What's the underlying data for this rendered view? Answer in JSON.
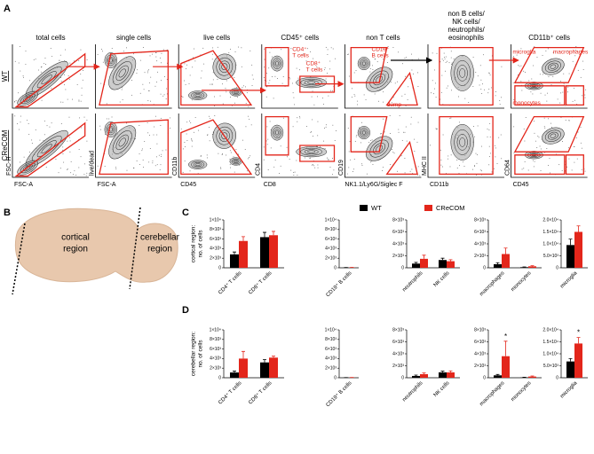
{
  "panel_labels": [
    "A",
    "B",
    "C",
    "D"
  ],
  "flow": {
    "rows": [
      "WT",
      "CReCOM"
    ],
    "columns": [
      {
        "title": [
          "total cells"
        ],
        "x": "FSC-A",
        "y": "FSC-H"
      },
      {
        "title": [
          "single cells"
        ],
        "x": "FSC-A",
        "y": "live/dead"
      },
      {
        "title": [
          "live cells"
        ],
        "x": "CD45",
        "y": "CD11b"
      },
      {
        "title": [
          "CD45⁺ cells"
        ],
        "x": "CD8",
        "y": "CD4"
      },
      {
        "title": [
          "non T cells"
        ],
        "x": "NK1.1/Ly6G/Siglec F",
        "y": "CD19"
      },
      {
        "title": [
          "non B cells/",
          "NK cells/",
          "neutrophils/",
          "eosinophils"
        ],
        "x": "CD11b",
        "y": "MHC II"
      },
      {
        "title": [
          "CD11b⁺ cells"
        ],
        "x": "CD45",
        "y": "CD64"
      }
    ],
    "gates": [
      [
        "CD4⁺",
        "T cells"
      ],
      [
        "CD8⁺",
        "T cells"
      ],
      [
        "CD19⁺",
        "B cells"
      ],
      [
        "dump"
      ],
      [
        "microglia"
      ],
      [
        "macrophages"
      ],
      [
        "monocytes"
      ]
    ]
  },
  "diagram": {
    "regions": [
      [
        "cortical",
        "region"
      ],
      [
        "cerebellar",
        "region"
      ]
    ]
  },
  "chart_data": [
    {
      "type": "bar",
      "ylabel": [
        "cortical region:",
        "no. of cells"
      ],
      "categories": [
        "CD4⁺ T cells",
        "CD8⁺ T cells"
      ],
      "ylim": [
        0,
        10000
      ],
      "yticks": [
        0,
        {
          "value": 2000,
          "label": "2×10³"
        },
        {
          "value": 4000,
          "label": "4×10³"
        },
        {
          "value": 6000,
          "label": "6×10³"
        },
        {
          "value": 8000,
          "label": "8×10³"
        },
        {
          "value": 10000,
          "label": "1×10⁴"
        }
      ],
      "series": [
        {
          "name": "WT",
          "color": "#000000",
          "values": [
            2800,
            6400
          ],
          "errors": [
            500,
            1000
          ]
        },
        {
          "name": "CReCOM",
          "color": "#e3261b",
          "values": [
            5600,
            6800
          ],
          "errors": [
            900,
            800
          ]
        }
      ]
    },
    {
      "type": "bar",
      "categories": [
        "CD19⁺ B cells"
      ],
      "ylim": [
        0,
        10000
      ],
      "yticks": [
        0,
        {
          "value": 2000,
          "label": "2×10³"
        },
        {
          "value": 4000,
          "label": "4×10³"
        },
        {
          "value": 6000,
          "label": "6×10³"
        },
        {
          "value": 8000,
          "label": "8×10³"
        },
        {
          "value": 10000,
          "label": "1×10⁴"
        }
      ],
      "series": [
        {
          "name": "WT",
          "color": "#000000",
          "values": [
            40
          ],
          "errors": [
            20
          ]
        },
        {
          "name": "CReCOM",
          "color": "#e3261b",
          "values": [
            60
          ],
          "errors": [
            30
          ]
        }
      ]
    },
    {
      "type": "bar",
      "categories": [
        "neutrophils",
        "NK cells"
      ],
      "ylim": [
        0,
        8000
      ],
      "yticks": [
        0,
        {
          "value": 2000,
          "label": "2×10³"
        },
        {
          "value": 4000,
          "label": "4×10³"
        },
        {
          "value": 6000,
          "label": "6×10³"
        },
        {
          "value": 8000,
          "label": "8×10³"
        }
      ],
      "series": [
        {
          "name": "WT",
          "color": "#000000",
          "values": [
            700,
            1300
          ],
          "errors": [
            200,
            300
          ]
        },
        {
          "name": "CReCOM",
          "color": "#e3261b",
          "values": [
            1500,
            1100
          ],
          "errors": [
            600,
            250
          ]
        }
      ]
    },
    {
      "type": "bar",
      "categories": [
        "macrophages",
        "monocytes"
      ],
      "ylim": [
        0,
        8000
      ],
      "yticks": [
        0,
        {
          "value": 2000,
          "label": "2×10³"
        },
        {
          "value": 4000,
          "label": "4×10³"
        },
        {
          "value": 6000,
          "label": "6×10³"
        },
        {
          "value": 8000,
          "label": "8×10³"
        }
      ],
      "series": [
        {
          "name": "WT",
          "color": "#000000",
          "values": [
            600,
            100
          ],
          "errors": [
            250,
            50
          ]
        },
        {
          "name": "CReCOM",
          "color": "#e3261b",
          "values": [
            2300,
            250
          ],
          "errors": [
            1000,
            100
          ]
        }
      ]
    },
    {
      "type": "bar",
      "categories": [
        "microglia"
      ],
      "ylim": [
        0,
        20000
      ],
      "yticks": [
        0,
        {
          "value": 5000,
          "label": "5.0×10³"
        },
        {
          "value": 10000,
          "label": "1.0×10⁴"
        },
        {
          "value": 15000,
          "label": "1.5×10⁴"
        },
        {
          "value": 20000,
          "label": "2.0×10⁴"
        }
      ],
      "series": [
        {
          "name": "WT",
          "color": "#000000",
          "values": [
            9500
          ],
          "errors": [
            2500
          ]
        },
        {
          "name": "CReCOM",
          "color": "#e3261b",
          "values": [
            15000
          ],
          "errors": [
            2500
          ]
        }
      ]
    },
    {
      "type": "bar",
      "ylabel": [
        "cerebellar region:",
        "no. of cells"
      ],
      "categories": [
        "CD4⁺ T cells",
        "CD8⁺ T cells"
      ],
      "ylim": [
        0,
        10000
      ],
      "yticks": [
        0,
        {
          "value": 2000,
          "label": "2×10³"
        },
        {
          "value": 4000,
          "label": "4×10³"
        },
        {
          "value": 6000,
          "label": "6×10³"
        },
        {
          "value": 8000,
          "label": "8×10³"
        },
        {
          "value": 10000,
          "label": "1×10⁴"
        }
      ],
      "series": [
        {
          "name": "WT",
          "color": "#000000",
          "values": [
            1100,
            3200
          ],
          "errors": [
            300,
            600
          ]
        },
        {
          "name": "CReCOM",
          "color": "#e3261b",
          "values": [
            4000,
            4200
          ],
          "errors": [
            1500,
            300
          ]
        }
      ]
    },
    {
      "type": "bar",
      "categories": [
        "CD19⁺ B cells"
      ],
      "ylim": [
        0,
        10000
      ],
      "yticks": [
        0,
        {
          "value": 2000,
          "label": "2×10³"
        },
        {
          "value": 4000,
          "label": "4×10³"
        },
        {
          "value": 6000,
          "label": "6×10³"
        },
        {
          "value": 8000,
          "label": "8×10³"
        },
        {
          "value": 10000,
          "label": "1×10⁴"
        }
      ],
      "series": [
        {
          "name": "WT",
          "color": "#000000",
          "values": [
            30
          ],
          "errors": [
            15
          ]
        },
        {
          "name": "CReCOM",
          "color": "#e3261b",
          "values": [
            40
          ],
          "errors": [
            20
          ]
        }
      ]
    },
    {
      "type": "bar",
      "categories": [
        "neutrophils",
        "NK cells"
      ],
      "ylim": [
        0,
        8000
      ],
      "yticks": [
        0,
        {
          "value": 2000,
          "label": "2×10³"
        },
        {
          "value": 4000,
          "label": "4×10³"
        },
        {
          "value": 6000,
          "label": "6×10³"
        },
        {
          "value": 8000,
          "label": "8×10³"
        }
      ],
      "series": [
        {
          "name": "WT",
          "color": "#000000",
          "values": [
            300,
            900
          ],
          "errors": [
            150,
            200
          ]
        },
        {
          "name": "CReCOM",
          "color": "#e3261b",
          "values": [
            600,
            900
          ],
          "errors": [
            200,
            250
          ]
        }
      ]
    },
    {
      "type": "bar",
      "categories": [
        "macrophages",
        "monocytes"
      ],
      "ylim": [
        0,
        8000
      ],
      "yticks": [
        0,
        {
          "value": 2000,
          "label": "2×10³"
        },
        {
          "value": 4000,
          "label": "4×10³"
        },
        {
          "value": 6000,
          "label": "6×10³"
        },
        {
          "value": 8000,
          "label": "8×10³"
        }
      ],
      "series": [
        {
          "name": "WT",
          "color": "#000000",
          "values": [
            400,
            50
          ],
          "errors": [
            150,
            30
          ]
        },
        {
          "name": "CReCOM",
          "color": "#e3261b",
          "values": [
            3600,
            200
          ],
          "errors": [
            2500,
            100
          ]
        }
      ],
      "annotations": [
        {
          "text": "*",
          "x": "macrophages"
        }
      ]
    },
    {
      "type": "bar",
      "categories": [
        "microglia"
      ],
      "ylim": [
        0,
        20000
      ],
      "yticks": [
        0,
        {
          "value": 5000,
          "label": "5.0×10³"
        },
        {
          "value": 10000,
          "label": "1.0×10⁴"
        },
        {
          "value": 15000,
          "label": "1.5×10⁴"
        },
        {
          "value": 20000,
          "label": "2.0×10⁴"
        }
      ],
      "series": [
        {
          "name": "WT",
          "color": "#000000",
          "values": [
            6800
          ],
          "errors": [
            1200
          ]
        },
        {
          "name": "CReCOM",
          "color": "#e3261b",
          "values": [
            14300
          ],
          "errors": [
            2500
          ]
        }
      ],
      "annotations": [
        {
          "text": "*",
          "x": "microglia"
        }
      ]
    }
  ]
}
